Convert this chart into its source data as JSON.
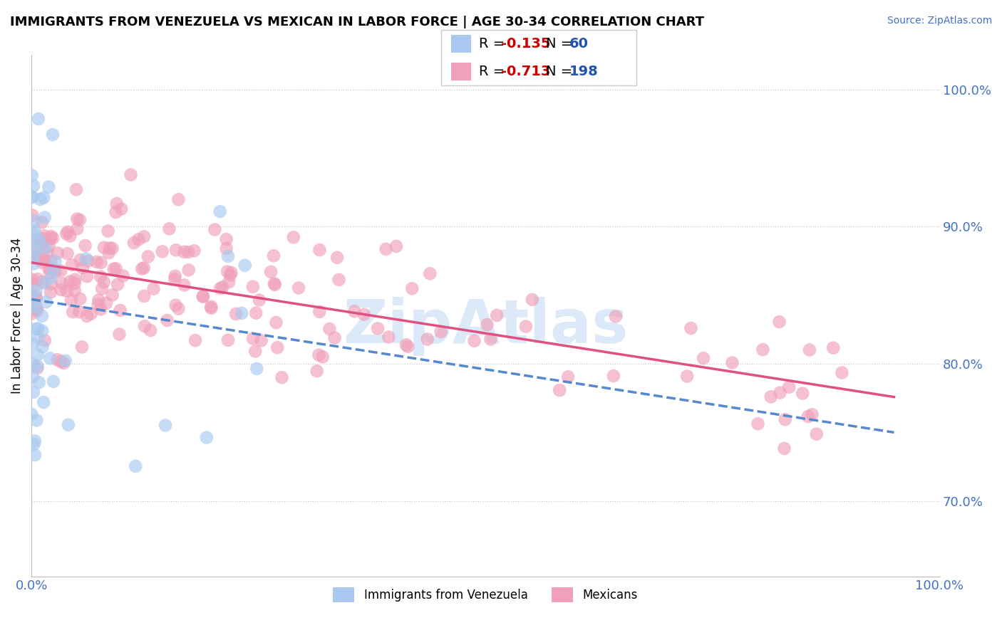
{
  "title": "IMMIGRANTS FROM VENEZUELA VS MEXICAN IN LABOR FORCE | AGE 30-34 CORRELATION CHART",
  "source": "Source: ZipAtlas.com",
  "ylabel": "In Labor Force | Age 30-34",
  "xlim": [
    0.0,
    1.0
  ],
  "ylim": [
    0.645,
    1.025
  ],
  "yticks": [
    0.7,
    0.8,
    0.9,
    1.0
  ],
  "ytick_labels": [
    "70.0%",
    "80.0%",
    "90.0%",
    "100.0%"
  ],
  "xtick_labels": [
    "0.0%",
    "100.0%"
  ],
  "xticks": [
    0.0,
    1.0
  ],
  "venezuela_R": -0.135,
  "venezuela_N": 60,
  "mexican_R": -0.713,
  "mexican_N": 198,
  "venezuela_color": "#a8c8f0",
  "mexican_color": "#f0a0b8",
  "venezuela_line_color": "#5588cc",
  "mexican_line_color": "#e05080",
  "watermark": "ZipAtlas",
  "watermark_color": "#a8c8f0",
  "background_color": "#ffffff",
  "grid_color": "#c8c8c8",
  "legend_R_color": "#cc0000",
  "legend_N_color": "#2255aa",
  "title_fontsize": 13,
  "source_fontsize": 10,
  "ylabel_fontsize": 12,
  "legend_fontsize": 14,
  "tick_label_color": "#4472c4"
}
